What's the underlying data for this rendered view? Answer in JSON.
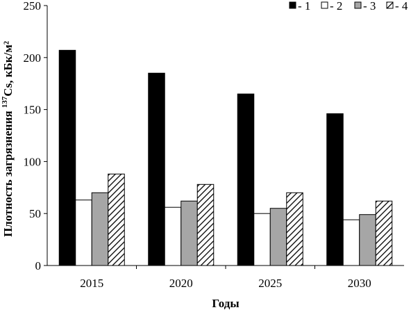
{
  "chart_data": {
    "type": "bar",
    "categories": [
      "2015",
      "2020",
      "2025",
      "2030"
    ],
    "series": [
      {
        "name": "- 1",
        "values": [
          207,
          185,
          165,
          146
        ],
        "fill": "#000000",
        "pattern": "solid"
      },
      {
        "name": "- 2",
        "values": [
          63,
          56,
          50,
          44
        ],
        "fill": "#ffffff",
        "pattern": "solid"
      },
      {
        "name": "- 3",
        "values": [
          70,
          62,
          55,
          49
        ],
        "fill": "#a6a6a6",
        "pattern": "solid"
      },
      {
        "name": "- 4",
        "values": [
          88,
          78,
          70,
          62
        ],
        "fill": "#ffffff",
        "pattern": "diagonal-hatch"
      }
    ],
    "xlabel": "Годы",
    "ylabel_prefix": "Плотность загрязнения ",
    "ylabel_superscript": "137",
    "ylabel_suffix": "Cs, кБк/м²",
    "ylim": [
      0,
      250
    ],
    "yticks": [
      "0",
      "50",
      "100",
      "150",
      "200",
      "250"
    ],
    "grid": false,
    "legend_position": "top-right"
  }
}
